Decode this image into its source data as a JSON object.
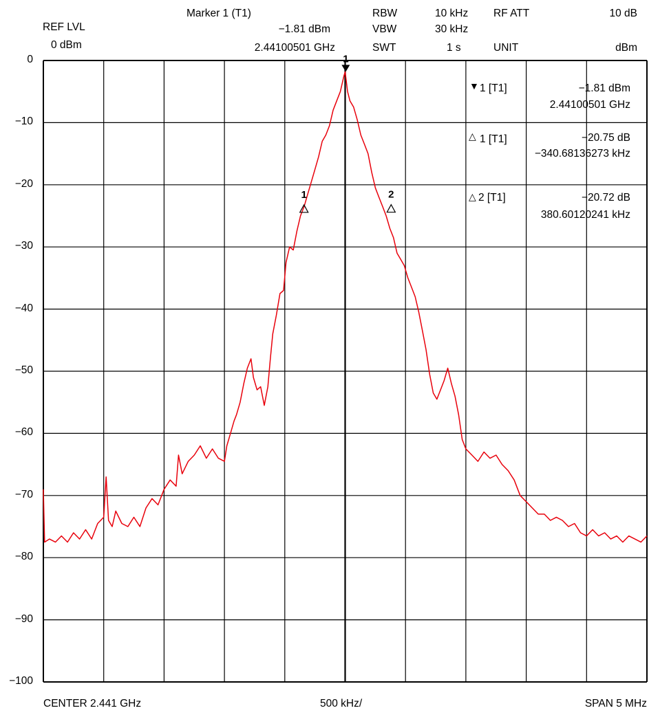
{
  "header": {
    "ref_lvl_label": "REF LVL",
    "ref_lvl_value": "0 dBm",
    "marker_title": "Marker 1 (T1)",
    "marker_level": "−1.81 dBm",
    "marker_freq": "2.44100501 GHz",
    "rbw_label": "RBW",
    "rbw_value": "10 kHz",
    "vbw_label": "VBW",
    "vbw_value": "30 kHz",
    "swt_label": "SWT",
    "swt_value": "1 s",
    "rfatt_label": "RF ATT",
    "rfatt_value": "10 dB",
    "unit_label": "UNIT",
    "unit_value": "dBm"
  },
  "marker_panel": [
    {
      "symbol": "▼",
      "label": "1 [T1]",
      "value": "−1.81 dBm",
      "sub": "2.44100501 GHz"
    },
    {
      "symbol": "△",
      "label": "1 [T1]",
      "value": "−20.75 dB",
      "sub": "−340.68136273 kHz"
    },
    {
      "symbol": "△",
      "label": "2 [T1]",
      "value": "−20.72 dB",
      "sub": "380.60120241 kHz"
    }
  ],
  "footer": {
    "center": "CENTER 2.441 GHz",
    "div": "500 kHz/",
    "span": "SPAN 5 MHz"
  },
  "colors": {
    "trace": "#e8000b",
    "grid": "#000000"
  },
  "chart_data": {
    "type": "line",
    "title": "",
    "xlabel": "",
    "ylabel": "",
    "x_unit": "MHz offset from 2.441 GHz",
    "xlim": [
      -2.5,
      2.5
    ],
    "ylim": [
      -100,
      0
    ],
    "grid": true,
    "y_ticks": [
      "0",
      "−10",
      "−20",
      "−30",
      "−40",
      "−50",
      "−60",
      "−70",
      "−80",
      "−90",
      "−100"
    ],
    "series": [
      {
        "points": [
          [
            -2.5,
            -69
          ],
          [
            -2.49,
            -77.5
          ],
          [
            -2.45,
            -77
          ],
          [
            -2.4,
            -77.5
          ],
          [
            -2.35,
            -76.5
          ],
          [
            -2.3,
            -77.5
          ],
          [
            -2.25,
            -76
          ],
          [
            -2.2,
            -77
          ],
          [
            -2.15,
            -75.5
          ],
          [
            -2.1,
            -77
          ],
          [
            -2.05,
            -74.5
          ],
          [
            -2.0,
            -73.5
          ],
          [
            -1.98,
            -67
          ],
          [
            -1.96,
            -74
          ],
          [
            -1.93,
            -75
          ],
          [
            -1.9,
            -72.5
          ],
          [
            -1.85,
            -74.5
          ],
          [
            -1.8,
            -75
          ],
          [
            -1.75,
            -73.5
          ],
          [
            -1.7,
            -75
          ],
          [
            -1.65,
            -72
          ],
          [
            -1.6,
            -70.5
          ],
          [
            -1.55,
            -71.5
          ],
          [
            -1.5,
            -69
          ],
          [
            -1.45,
            -67.5
          ],
          [
            -1.4,
            -68.5
          ],
          [
            -1.38,
            -63.5
          ],
          [
            -1.35,
            -66.5
          ],
          [
            -1.3,
            -64.5
          ],
          [
            -1.25,
            -63.5
          ],
          [
            -1.2,
            -62
          ],
          [
            -1.15,
            -64
          ],
          [
            -1.1,
            -62.5
          ],
          [
            -1.05,
            -64
          ],
          [
            -1.0,
            -64.5
          ],
          [
            -0.98,
            -62
          ],
          [
            -0.95,
            -60
          ],
          [
            -0.92,
            -58
          ],
          [
            -0.9,
            -57
          ],
          [
            -0.87,
            -55
          ],
          [
            -0.84,
            -52
          ],
          [
            -0.81,
            -49.5
          ],
          [
            -0.78,
            -48
          ],
          [
            -0.76,
            -51
          ],
          [
            -0.73,
            -53
          ],
          [
            -0.7,
            -52.5
          ],
          [
            -0.67,
            -55.5
          ],
          [
            -0.64,
            -52.5
          ],
          [
            -0.62,
            -48
          ],
          [
            -0.6,
            -44
          ],
          [
            -0.57,
            -41
          ],
          [
            -0.54,
            -37.5
          ],
          [
            -0.51,
            -37
          ],
          [
            -0.49,
            -32.5
          ],
          [
            -0.46,
            -30
          ],
          [
            -0.43,
            -30.5
          ],
          [
            -0.4,
            -27.5
          ],
          [
            -0.37,
            -25
          ],
          [
            -0.34,
            -23.5
          ],
          [
            -0.31,
            -21.5
          ],
          [
            -0.28,
            -19.5
          ],
          [
            -0.25,
            -17.5
          ],
          [
            -0.22,
            -15.5
          ],
          [
            -0.19,
            -13
          ],
          [
            -0.16,
            -12
          ],
          [
            -0.13,
            -10.5
          ],
          [
            -0.1,
            -8
          ],
          [
            -0.07,
            -6.5
          ],
          [
            -0.04,
            -5
          ],
          [
            -0.01,
            -2.5
          ],
          [
            0.0,
            -1.81
          ],
          [
            0.02,
            -5
          ],
          [
            0.04,
            -6.5
          ],
          [
            0.07,
            -7.5
          ],
          [
            0.1,
            -9.5
          ],
          [
            0.13,
            -12
          ],
          [
            0.16,
            -13.5
          ],
          [
            0.19,
            -15
          ],
          [
            0.22,
            -18
          ],
          [
            0.25,
            -20.5
          ],
          [
            0.28,
            -22
          ],
          [
            0.31,
            -23.5
          ],
          [
            0.34,
            -25
          ],
          [
            0.37,
            -27
          ],
          [
            0.4,
            -28.5
          ],
          [
            0.43,
            -31
          ],
          [
            0.46,
            -32
          ],
          [
            0.49,
            -33
          ],
          [
            0.52,
            -35
          ],
          [
            0.55,
            -36.5
          ],
          [
            0.58,
            -38
          ],
          [
            0.61,
            -40.5
          ],
          [
            0.64,
            -43.5
          ],
          [
            0.67,
            -46.5
          ],
          [
            0.7,
            -50.5
          ],
          [
            0.73,
            -53.5
          ],
          [
            0.76,
            -54.5
          ],
          [
            0.79,
            -53
          ],
          [
            0.82,
            -51.5
          ],
          [
            0.85,
            -49.5
          ],
          [
            0.88,
            -52
          ],
          [
            0.91,
            -54
          ],
          [
            0.94,
            -57
          ],
          [
            0.97,
            -61
          ],
          [
            1.0,
            -62.5
          ],
          [
            1.05,
            -63.5
          ],
          [
            1.1,
            -64.5
          ],
          [
            1.15,
            -63
          ],
          [
            1.2,
            -64
          ],
          [
            1.25,
            -63.5
          ],
          [
            1.3,
            -65
          ],
          [
            1.35,
            -66
          ],
          [
            1.4,
            -67.5
          ],
          [
            1.45,
            -70
          ],
          [
            1.5,
            -71
          ],
          [
            1.55,
            -72
          ],
          [
            1.6,
            -73
          ],
          [
            1.65,
            -73
          ],
          [
            1.7,
            -74
          ],
          [
            1.75,
            -73.5
          ],
          [
            1.8,
            -74
          ],
          [
            1.85,
            -75
          ],
          [
            1.9,
            -74.5
          ],
          [
            1.95,
            -76
          ],
          [
            2.0,
            -76.5
          ],
          [
            2.05,
            -75.5
          ],
          [
            2.1,
            -76.5
          ],
          [
            2.15,
            -76
          ],
          [
            2.2,
            -77
          ],
          [
            2.25,
            -76.5
          ],
          [
            2.3,
            -77.5
          ],
          [
            2.35,
            -76.5
          ],
          [
            2.4,
            -77
          ],
          [
            2.45,
            -77.5
          ],
          [
            2.5,
            -76.5
          ]
        ]
      }
    ],
    "markers": [
      {
        "label": "1",
        "x": 0.005,
        "y": -1.81,
        "type": "normal"
      },
      {
        "label": "1",
        "x": -0.341,
        "y": -22.56,
        "type": "delta"
      },
      {
        "label": "2",
        "x": 0.381,
        "y": -22.53,
        "type": "delta"
      }
    ]
  }
}
